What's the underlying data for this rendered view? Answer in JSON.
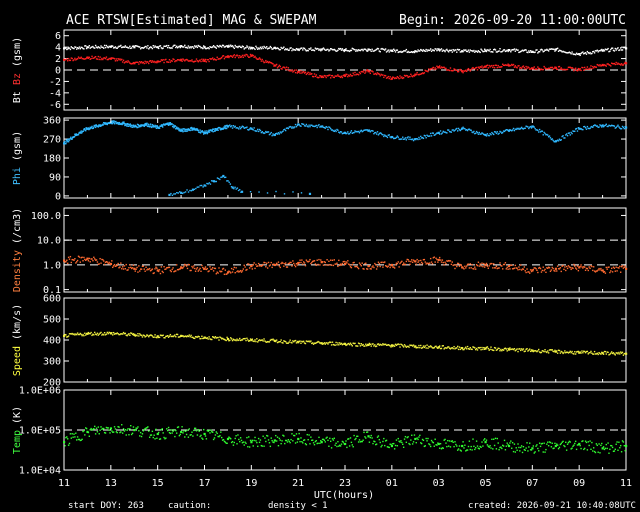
{
  "header": {
    "title": "ACE RTSW[Estimated] MAG & SWEPAM",
    "begin": "Begin: 2026-09-20 11:00:00UTC"
  },
  "footer": {
    "start_doy": "start DOY: 263",
    "caution": "caution:",
    "density_note": "density < 1",
    "created": "created: 2026-09-21 10:40:08UTC",
    "density_note_color": "#ff8040"
  },
  "chart_data": {
    "type": "scatter",
    "xlabel": "UTC(hours)",
    "xticks": [
      "11",
      "13",
      "15",
      "17",
      "19",
      "21",
      "23",
      "01",
      "03",
      "05",
      "07",
      "09",
      "11"
    ],
    "x_range_hours": [
      0,
      24
    ],
    "panels": [
      {
        "id": "mag",
        "ylabel_parts": [
          {
            "text": "Bt",
            "color": "#ffffff"
          },
          {
            "text": "Bz",
            "color": "#ff3030"
          },
          {
            "text": "(gsm)",
            "color": "#ffffff"
          }
        ],
        "scale": "linear",
        "ylim": [
          -7,
          7
        ],
        "yticks": [
          -6,
          -4,
          -2,
          0,
          2,
          4,
          6
        ],
        "dashed": [
          0
        ],
        "series": [
          {
            "name": "Bt",
            "color": "#ffffff",
            "x": [
              0,
              1,
              2,
              3,
              4,
              5,
              6,
              7,
              8,
              9,
              10,
              11,
              12,
              13,
              14,
              15,
              16,
              17,
              18,
              19,
              20,
              21,
              22,
              23,
              24
            ],
            "y": [
              3.8,
              4.0,
              4.1,
              4.0,
              4.0,
              4.2,
              4.0,
              4.1,
              3.9,
              3.9,
              3.6,
              3.6,
              3.5,
              3.6,
              3.4,
              3.3,
              3.6,
              3.3,
              3.4,
              3.5,
              3.2,
              3.6,
              2.8,
              3.4,
              3.8
            ]
          },
          {
            "name": "Bz",
            "color": "#ff2020",
            "x": [
              0,
              1,
              2,
              3,
              4,
              5,
              6,
              7,
              8,
              9,
              10,
              11,
              12,
              13,
              14,
              15,
              16,
              17,
              18,
              19,
              20,
              21,
              22,
              23,
              24
            ],
            "y": [
              1.8,
              2.2,
              2.0,
              1.2,
              1.5,
              1.8,
              1.6,
              2.4,
              2.5,
              0.8,
              -0.3,
              -1.2,
              -1.0,
              -0.2,
              -1.5,
              -0.8,
              0.5,
              -0.2,
              0.6,
              0.8,
              0.3,
              0.4,
              0.1,
              0.9,
              1.2
            ]
          }
        ]
      },
      {
        "id": "phi",
        "ylabel_parts": [
          {
            "text": "Phi",
            "color": "#40c0ff"
          },
          {
            "text": "(gsm)",
            "color": "#ffffff"
          }
        ],
        "scale": "linear",
        "ylim": [
          -10,
          370
        ],
        "yticks": [
          0,
          90,
          180,
          270,
          360
        ],
        "tick_labels": [
          "0",
          "90",
          "180",
          "270",
          "360"
        ],
        "dashed": [],
        "series": [
          {
            "name": "Phi",
            "color": "#30b8ff",
            "x": [
              0,
              0.5,
              1,
              1.5,
              2,
              2.5,
              3,
              3.5,
              4,
              4.5,
              5,
              5.5,
              6,
              6.5,
              7,
              8,
              9,
              10,
              11,
              12,
              13,
              14,
              15,
              16,
              17,
              18,
              19,
              20,
              21,
              22,
              23,
              24
            ],
            "y": [
              250,
              290,
              320,
              335,
              350,
              345,
              330,
              340,
              325,
              345,
              310,
              320,
              300,
              315,
              330,
              320,
              290,
              340,
              330,
              300,
              310,
              280,
              270,
              300,
              320,
              290,
              310,
              330,
              260,
              320,
              335,
              325
            ]
          },
          {
            "name": "Phi-low",
            "color": "#30b8ff",
            "x": [
              4.5,
              5.0,
              5.5,
              6.0,
              6.4,
              6.8,
              7.2,
              7.6,
              10.5
            ],
            "y": [
              5,
              15,
              30,
              50,
              70,
              95,
              40,
              20,
              10
            ]
          }
        ]
      },
      {
        "id": "density",
        "ylabel_parts": [
          {
            "text": "Density",
            "color": "#ff8040"
          },
          {
            "text": "(/cm3)",
            "color": "#ffffff"
          }
        ],
        "scale": "log",
        "ylim": [
          0.08,
          200
        ],
        "yticks": [
          0.1,
          1.0,
          10.0,
          100.0
        ],
        "tick_labels": [
          "0.1",
          "1.0",
          "10.0",
          "100.0"
        ],
        "dashed": [
          1.0,
          10.0
        ],
        "series": [
          {
            "name": "Density",
            "color": "#ff6a30",
            "x": [
              0,
              1,
              2,
              3,
              4,
              5,
              6,
              7,
              8,
              9,
              10,
              11,
              12,
              13,
              14,
              15,
              16,
              17,
              18,
              19,
              20,
              21,
              22,
              23,
              24
            ],
            "y": [
              1.5,
              1.8,
              1.1,
              0.7,
              0.6,
              0.8,
              0.7,
              0.5,
              0.9,
              1.0,
              1.2,
              1.3,
              1.1,
              0.9,
              1.0,
              1.4,
              1.6,
              0.8,
              1.0,
              0.9,
              0.6,
              0.7,
              0.8,
              0.6,
              0.7
            ]
          }
        ]
      },
      {
        "id": "speed",
        "ylabel_parts": [
          {
            "text": "Speed",
            "color": "#ffff40"
          },
          {
            "text": "(km/s)",
            "color": "#ffffff"
          }
        ],
        "scale": "linear",
        "ylim": [
          200,
          600
        ],
        "yticks": [
          200,
          300,
          400,
          500,
          600
        ],
        "tick_labels": [
          "200",
          "300",
          "400",
          "500",
          "600"
        ],
        "dashed": [],
        "series": [
          {
            "name": "Speed",
            "color": "#f0f040",
            "x": [
              0,
              1,
              2,
              3,
              4,
              5,
              6,
              7,
              8,
              9,
              10,
              11,
              12,
              13,
              14,
              15,
              16,
              17,
              18,
              19,
              20,
              21,
              22,
              23,
              24
            ],
            "y": [
              420,
              430,
              432,
              425,
              418,
              420,
              412,
              405,
              400,
              396,
              390,
              385,
              382,
              377,
              375,
              370,
              366,
              362,
              360,
              355,
              350,
              345,
              340,
              338,
              335
            ]
          }
        ]
      },
      {
        "id": "temp",
        "ylabel_parts": [
          {
            "text": "Temp",
            "color": "#40ff40"
          },
          {
            "text": "(K)",
            "color": "#ffffff"
          }
        ],
        "scale": "log",
        "ylim": [
          10000,
          1000000
        ],
        "yticks": [
          10000,
          100000,
          1000000
        ],
        "tick_labels": [
          "1.0E+04",
          "1.0E+05",
          "1.0E+06"
        ],
        "dashed": [
          100000
        ],
        "series": [
          {
            "name": "Temp",
            "color": "#30ff30",
            "x": [
              0,
              1,
              2,
              3,
              4,
              5,
              6,
              7,
              8,
              9,
              10,
              11,
              12,
              13,
              14,
              15,
              16,
              17,
              18,
              19,
              20,
              21,
              22,
              23,
              24
            ],
            "y": [
              50000,
              90000,
              110000,
              100000,
              80000,
              90000,
              80000,
              60000,
              50000,
              55000,
              60000,
              50000,
              45000,
              70000,
              40000,
              60000,
              45000,
              40000,
              50000,
              40000,
              35000,
              40000,
              45000,
              35000,
              40000
            ]
          }
        ]
      }
    ]
  }
}
